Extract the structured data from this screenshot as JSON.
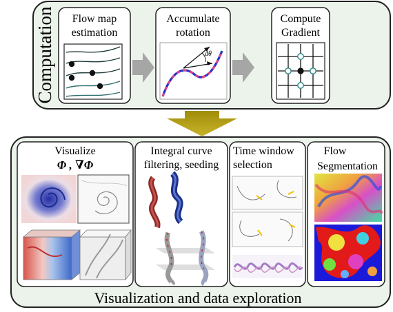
{
  "computation": {
    "label": "Computation",
    "steps": [
      {
        "title_lines": [
          "Flow map",
          "estimation"
        ]
      },
      {
        "title_lines": [
          "Accumulate",
          "rotation"
        ],
        "symbol": "dθ"
      },
      {
        "title_lines": [
          "Compute",
          "Gradient"
        ]
      }
    ]
  },
  "exploration": {
    "caption": "Visualization and data exploration",
    "panels": [
      {
        "title_lines": [
          "Visualize"
        ],
        "formula": "Φ ,  ∇Φ"
      },
      {
        "title_lines": [
          "Integral curve",
          "filtering, seeding"
        ]
      },
      {
        "title_lines": [
          "Time window",
          "selection"
        ]
      },
      {
        "title_lines": [
          "Flow",
          "Segmentation"
        ]
      }
    ]
  },
  "colors": {
    "background_panel": "#ebf3ea",
    "arrow_gray": "#a6a6a6",
    "arrow_olive": "#b5a214",
    "curve_blue": "#2233cc",
    "curve_magenta": "#d8468c",
    "node_teal": "#2f8a8a"
  }
}
